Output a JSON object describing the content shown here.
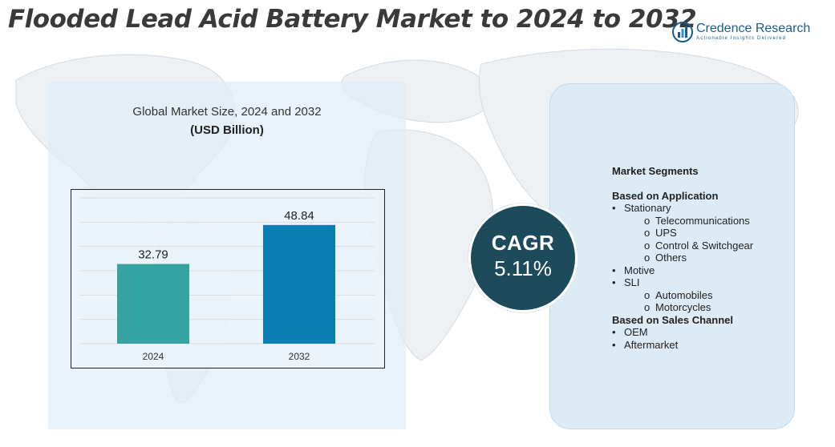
{
  "title": "Flooded Lead Acid Battery Market to 2024 to 2032",
  "brand": {
    "name": "Credence Research",
    "tagline": "Actionable Insights Delivered",
    "color": "#1a5d8c",
    "icon": "bar-chart-circle-logo"
  },
  "colors": {
    "bar_2024": "#35a3a2",
    "bar_2032": "#0a7eb3",
    "cagr_circle": "#1d4b5c",
    "panel_bg": "#dcebf6"
  },
  "chart_data": {
    "type": "bar",
    "title": "Global Market Size,  2024 and 2032",
    "subtitle": "(USD Billion)",
    "categories": [
      "2024",
      "2032"
    ],
    "values": [
      32.79,
      48.84
    ],
    "data_labels": [
      "32.79",
      "48.84"
    ],
    "ylim": [
      0,
      60
    ],
    "grid": true,
    "legend": "none"
  },
  "cagr": {
    "label": "CAGR",
    "value": "5.11%"
  },
  "segments": {
    "heading": "Market Segments",
    "groups": [
      {
        "title": "Based on Application",
        "items": [
          {
            "text": "Stationary",
            "level": 1
          },
          {
            "text": "Telecommunications",
            "level": 2
          },
          {
            "text": "UPS",
            "level": 2
          },
          {
            "text": "Control & Switchgear",
            "level": 2
          },
          {
            "text": "Others",
            "level": 2
          },
          {
            "text": "Motive",
            "level": 1
          },
          {
            "text": "SLI",
            "level": 1
          },
          {
            "text": "Automobiles",
            "level": 2
          },
          {
            "text": "Motorcycles",
            "level": 2
          }
        ]
      },
      {
        "title": "Based on Sales Channel",
        "items": [
          {
            "text": "OEM",
            "level": 1
          },
          {
            "text": "Aftermarket",
            "level": 1
          }
        ]
      }
    ]
  }
}
